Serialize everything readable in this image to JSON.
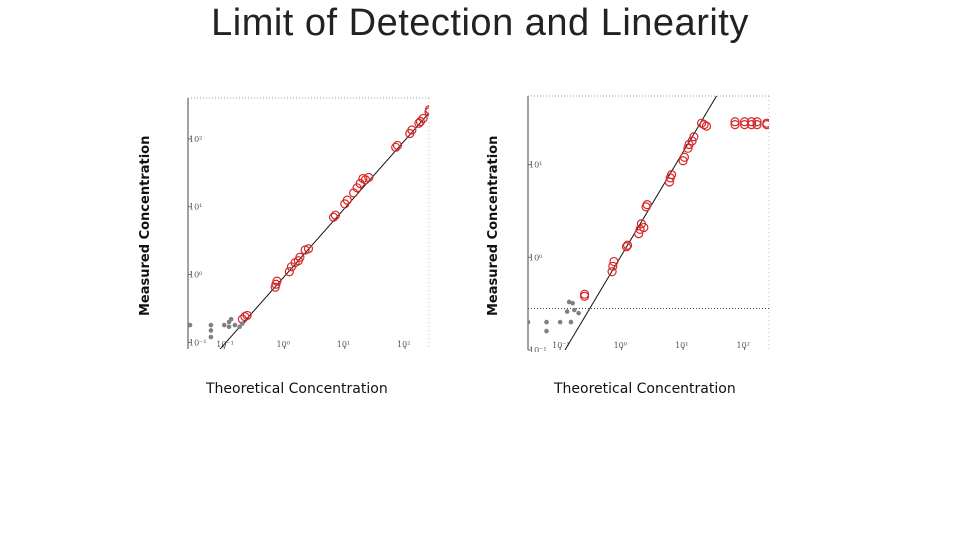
{
  "slide": {
    "title": "Limit of Detection and Linearity"
  },
  "chart_data": [
    {
      "type": "scatter",
      "xscale": "log",
      "yscale": "log",
      "xlim": [
        0.025,
        250
      ],
      "ylim": [
        0.08,
        400
      ],
      "xticks": [
        0.1,
        1,
        10,
        100
      ],
      "yticks": [
        0.1,
        1,
        10,
        100
      ],
      "xtick_labels": [
        "10⁻¹",
        "10⁰",
        "10¹",
        "10²"
      ],
      "ytick_labels": [
        "10⁻¹",
        "10⁰",
        "10¹",
        "10²"
      ],
      "xlabel": "Theoretical Concentration",
      "ylabel": "Measured Concentration",
      "colors": {
        "detected": "#d62728",
        "undetected": "#808080",
        "fit": "#111111"
      },
      "fit_line": [
        [
          0.08,
          0.075
        ],
        [
          250,
          240
        ]
      ],
      "series": [
        {
          "marker": "open-circle",
          "color": "#d62728",
          "points": [
            [
              0.2,
              0.22
            ],
            [
              0.22,
              0.24
            ],
            [
              0.24,
              0.25
            ],
            [
              0.7,
              0.65
            ],
            [
              0.72,
              0.72
            ],
            [
              0.75,
              0.8
            ],
            [
              1.2,
              1.1
            ],
            [
              1.3,
              1.3
            ],
            [
              1.5,
              1.5
            ],
            [
              1.7,
              1.6
            ],
            [
              1.8,
              1.8
            ],
            [
              2.2,
              2.3
            ],
            [
              2.5,
              2.4
            ],
            [
              6.5,
              7.0
            ],
            [
              7.0,
              7.5
            ],
            [
              10,
              11
            ],
            [
              11,
              12.5
            ],
            [
              14,
              16
            ],
            [
              16,
              19
            ],
            [
              18,
              22
            ],
            [
              20,
              26
            ],
            [
              22,
              25
            ],
            [
              25,
              27
            ],
            [
              70,
              75
            ],
            [
              75,
              80
            ],
            [
              120,
              120
            ],
            [
              130,
              135
            ],
            [
              170,
              170
            ],
            [
              180,
              180
            ],
            [
              200,
              200
            ],
            [
              250,
              250
            ],
            [
              255,
              270
            ]
          ]
        },
        {
          "marker": "filled-dot",
          "color": "#808080",
          "points": [
            [
              0.027,
              0.18
            ],
            [
              0.06,
              0.18
            ],
            [
              0.06,
              0.15
            ],
            [
              0.06,
              0.12
            ],
            [
              0.1,
              0.18
            ],
            [
              0.12,
              0.17
            ],
            [
              0.12,
              0.2
            ],
            [
              0.13,
              0.22
            ],
            [
              0.15,
              0.18
            ],
            [
              0.18,
              0.17
            ],
            [
              0.2,
              0.19
            ]
          ]
        }
      ]
    },
    {
      "type": "scatter",
      "xscale": "log",
      "yscale": "log",
      "xlim": [
        0.03,
        250
      ],
      "ylim": [
        0.1,
        55
      ],
      "xticks": [
        0.1,
        1,
        10,
        100
      ],
      "yticks": [
        0.1,
        1,
        10
      ],
      "xtick_labels": [
        "10⁻¹",
        "10⁰",
        "10¹",
        "10²"
      ],
      "ytick_labels": [
        "10⁻¹",
        "10⁰",
        "10¹"
      ],
      "xlabel": "Theoretical Concentration",
      "ylabel": "Measured Concentration",
      "colors": {
        "detected": "#d62728",
        "undetected": "#808080",
        "fit": "#111111"
      },
      "fit_line": [
        [
          0.12,
          0.1
        ],
        [
          35,
          55
        ]
      ],
      "lod_line": 0.28,
      "series": [
        {
          "marker": "open-circle",
          "color": "#d62728",
          "points": [
            [
              0.25,
              0.38
            ],
            [
              0.25,
              0.4
            ],
            [
              0.7,
              0.7
            ],
            [
              0.72,
              0.8
            ],
            [
              0.75,
              0.9
            ],
            [
              1.2,
              1.3
            ],
            [
              1.25,
              1.35
            ],
            [
              1.9,
              1.8
            ],
            [
              2.0,
              2.0
            ],
            [
              2.1,
              2.3
            ],
            [
              2.3,
              2.1
            ],
            [
              2.5,
              3.5
            ],
            [
              2.6,
              3.7
            ],
            [
              6.0,
              6.5
            ],
            [
              6.2,
              7.2
            ],
            [
              6.5,
              7.8
            ],
            [
              10,
              11
            ],
            [
              10.5,
              12
            ],
            [
              12,
              15
            ],
            [
              12.5,
              16.5
            ],
            [
              14,
              18
            ],
            [
              15,
              20
            ],
            [
              20,
              28
            ],
            [
              22,
              27
            ],
            [
              24,
              26
            ],
            [
              70,
              27
            ],
            [
              70,
              29
            ],
            [
              100,
              27
            ],
            [
              100,
              29
            ],
            [
              130,
              27
            ],
            [
              130,
              29
            ],
            [
              160,
              27
            ],
            [
              160,
              29
            ],
            [
              230,
              27
            ],
            [
              230,
              28
            ]
          ]
        },
        {
          "marker": "filled-dot",
          "color": "#808080",
          "points": [
            [
              0.03,
              0.2
            ],
            [
              0.06,
              0.2
            ],
            [
              0.06,
              0.16
            ],
            [
              0.1,
              0.2
            ],
            [
              0.15,
              0.2
            ],
            [
              0.13,
              0.26
            ],
            [
              0.17,
              0.27
            ],
            [
              0.2,
              0.25
            ],
            [
              0.16,
              0.32
            ],
            [
              0.14,
              0.33
            ]
          ]
        }
      ]
    }
  ]
}
